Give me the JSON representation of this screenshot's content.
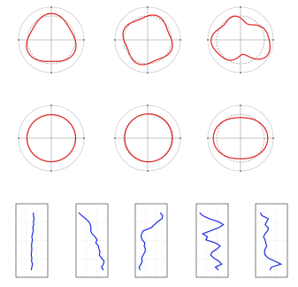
{
  "chart_data": [
    {
      "type": "line",
      "projection": "polar",
      "shape": "rounded-triangle",
      "harmonic": 3,
      "amplitude": 0.1,
      "phase_deg": 90,
      "style": {
        "reference_color": "#9e9e9e",
        "profile_color": "#e02020"
      }
    },
    {
      "type": "line",
      "projection": "polar",
      "shape": "rounded-square",
      "harmonic": 4,
      "amplitude": 0.08,
      "phase_deg": 90,
      "style": {
        "reference_color": "#9e9e9e",
        "profile_color": "#e02020"
      }
    },
    {
      "type": "line",
      "projection": "polar",
      "shape": "irregular-lobed",
      "harmonics": [
        [
          2,
          0.22,
          10
        ],
        [
          3,
          0.12,
          60
        ],
        [
          5,
          0.08,
          200
        ]
      ],
      "style": {
        "reference_color": "#9e9e9e",
        "profile_color": "#e02020"
      }
    },
    {
      "type": "line",
      "projection": "polar",
      "shape": "near-circular",
      "harmonic": 2,
      "amplitude": 0.02,
      "phase_deg": 0,
      "style": {
        "reference_color": "#9e9e9e",
        "profile_color": "#e02020"
      }
    },
    {
      "type": "line",
      "projection": "polar",
      "shape": "shifted-circle",
      "harmonic": 1,
      "amplitude": 0.04,
      "phase_deg": 340,
      "style": {
        "reference_color": "#9e9e9e",
        "profile_color": "#e02020"
      }
    },
    {
      "type": "line",
      "projection": "polar",
      "shape": "horizontal-ellipse",
      "harmonic": 2,
      "amplitude": 0.14,
      "phase_deg": 0,
      "style": {
        "reference_color": "#9e9e9e",
        "profile_color": "#e02020"
      }
    },
    {
      "type": "line",
      "orientation": "vertical-profile",
      "x": [
        0.55,
        0.55,
        0.57,
        0.55,
        0.56,
        0.53,
        0.55,
        0.52,
        0.5,
        0.52,
        0.5,
        0.49,
        0.5,
        0.49,
        0.48,
        0.5,
        0.49,
        0.52,
        0.5,
        0.48
      ],
      "ylim": [
        0,
        1
      ],
      "style": {
        "color": "#1e2ee0"
      }
    },
    {
      "type": "line",
      "orientation": "vertical-profile",
      "x": [
        0.08,
        0.18,
        0.3,
        0.4,
        0.45,
        0.47,
        0.46,
        0.5,
        0.6,
        0.66,
        0.62,
        0.7,
        0.72,
        0.75,
        0.73,
        0.8,
        0.88,
        0.86,
        0.8,
        0.86
      ],
      "ylim": [
        0,
        1
      ],
      "style": {
        "color": "#1e2ee0"
      }
    },
    {
      "type": "line",
      "orientation": "vertical-profile",
      "x": [
        0.78,
        0.86,
        0.84,
        0.7,
        0.6,
        0.5,
        0.25,
        0.2,
        0.18,
        0.22,
        0.3,
        0.28,
        0.32,
        0.3,
        0.25,
        0.2,
        0.22,
        0.18,
        0.12,
        0.15
      ],
      "ylim": [
        0,
        1
      ],
      "style": {
        "color": "#1e2ee0"
      }
    },
    {
      "type": "line",
      "orientation": "vertical-profile",
      "x": [
        0.1,
        0.2,
        0.4,
        0.7,
        0.85,
        0.7,
        0.45,
        0.2,
        0.35,
        0.3,
        0.6,
        0.75,
        0.65,
        0.5,
        0.45,
        0.55,
        0.7,
        0.8,
        0.6,
        0.7
      ],
      "ylim": [
        0,
        1
      ],
      "style": {
        "color": "#1e2ee0"
      }
    },
    {
      "type": "line",
      "orientation": "vertical-profile",
      "x": [
        0.15,
        0.2,
        0.4,
        0.35,
        0.3,
        0.4,
        0.38,
        0.3,
        0.25,
        0.3,
        0.32,
        0.35,
        0.3,
        0.28,
        0.3,
        0.4,
        0.6,
        0.8,
        0.5,
        0.45
      ],
      "ylim": [
        0,
        1
      ],
      "style": {
        "color": "#1e2ee0"
      }
    }
  ]
}
